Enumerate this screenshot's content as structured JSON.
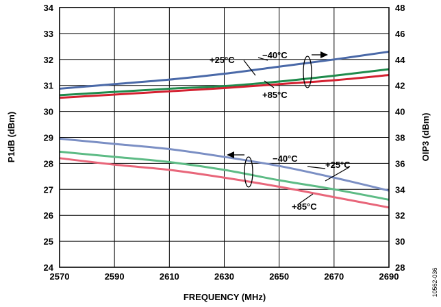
{
  "chart_data": {
    "type": "line",
    "xlabel": "FREQUENCY (MHz)",
    "ylabel_left": "P1dB (dBm)",
    "ylabel_right": "OIP3 (dBm)",
    "x_ticks": [
      "2570",
      "2590",
      "2610",
      "2630",
      "2650",
      "2670",
      "2690"
    ],
    "y_left_ticks": [
      "24",
      "25",
      "26",
      "27",
      "28",
      "29",
      "30",
      "31",
      "32",
      "33",
      "34"
    ],
    "y_right_ticks": [
      "28",
      "30",
      "32",
      "34",
      "36",
      "38",
      "40",
      "42",
      "44",
      "46",
      "48"
    ],
    "xlim": [
      2570,
      2690
    ],
    "ylim_left": [
      24,
      34
    ],
    "ylim_right": [
      28,
      48
    ],
    "grid": true,
    "figure_code": "10562-036",
    "colors": {
      "minus40": "#4a69a8",
      "plus25": "#1f8b4c",
      "plus85": "#d42030",
      "minus40_light": "#7b8fc4",
      "plus25_light": "#5dbb85",
      "plus85_light": "#e8667a"
    },
    "series": [
      {
        "group": "OIP3",
        "axis": "right",
        "color_key": "minus40",
        "x": [
          2570,
          2590,
          2610,
          2630,
          2650,
          2670,
          2690
        ],
        "values": [
          41.75,
          42.1,
          42.45,
          42.9,
          43.45,
          44.0,
          44.6
        ]
      },
      {
        "group": "OIP3",
        "axis": "right",
        "color_key": "plus25",
        "x": [
          2570,
          2590,
          2610,
          2630,
          2650,
          2670,
          2690
        ],
        "values": [
          41.25,
          41.5,
          41.75,
          41.95,
          42.3,
          42.75,
          43.25
        ]
      },
      {
        "group": "OIP3",
        "axis": "right",
        "color_key": "plus85",
        "x": [
          2570,
          2590,
          2610,
          2630,
          2650,
          2670,
          2690
        ],
        "values": [
          41.05,
          41.3,
          41.55,
          41.8,
          42.1,
          42.4,
          42.8
        ]
      },
      {
        "group": "P1dB",
        "axis": "left",
        "color_key": "minus40_light",
        "x": [
          2570,
          2590,
          2610,
          2630,
          2650,
          2670,
          2690
        ],
        "values": [
          28.95,
          28.75,
          28.55,
          28.25,
          27.9,
          27.45,
          26.95
        ]
      },
      {
        "group": "P1dB",
        "axis": "left",
        "color_key": "plus25_light",
        "x": [
          2570,
          2590,
          2610,
          2630,
          2650,
          2670,
          2690
        ],
        "values": [
          28.45,
          28.25,
          28.05,
          27.75,
          27.35,
          27.0,
          26.6
        ]
      },
      {
        "group": "P1dB",
        "axis": "left",
        "color_key": "plus85_light",
        "x": [
          2570,
          2590,
          2610,
          2630,
          2650,
          2670,
          2690
        ],
        "values": [
          28.2,
          27.95,
          27.75,
          27.45,
          27.1,
          26.7,
          26.3
        ]
      }
    ],
    "annotations": {
      "oip3_minus40": "−40°C",
      "oip3_plus25": "+25°C",
      "oip3_plus85": "+85°C",
      "p1db_minus40": "−40°C",
      "p1db_plus25": "+25°C",
      "p1db_plus85": "+85°C"
    }
  }
}
